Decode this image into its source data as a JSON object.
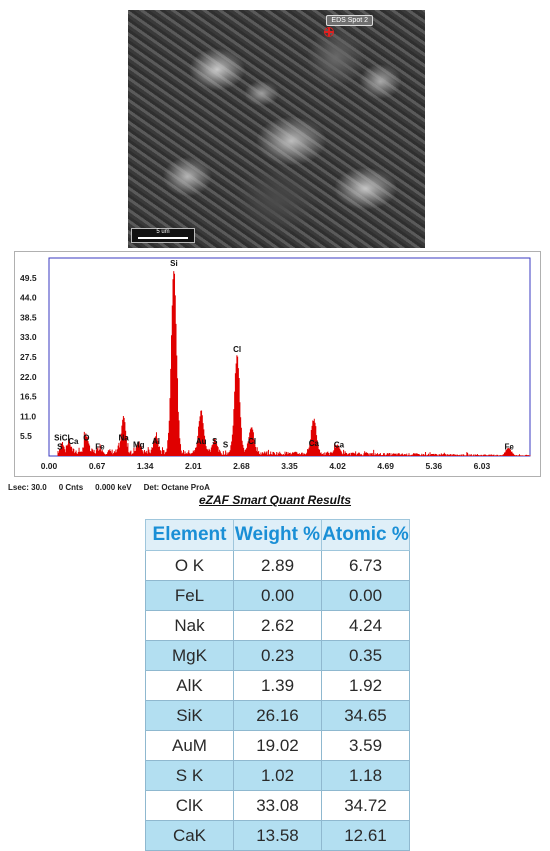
{
  "sem": {
    "tag": "EDS Spot 2",
    "scale_label": "5 um"
  },
  "chart_data": {
    "type": "line",
    "xlim": [
      0.0,
      6.7
    ],
    "ylim": [
      0,
      55
    ],
    "x_ticks": [
      "0.00",
      "0.67",
      "1.34",
      "2.01",
      "2.68",
      "3.35",
      "4.02",
      "4.69",
      "5.36",
      "6.03"
    ],
    "y_ticks": [
      "5.5",
      "11.0",
      "16.5",
      "22.0",
      "27.5",
      "33.0",
      "38.5",
      "44.0",
      "49.5"
    ],
    "line_color": "#e00000",
    "peaks": [
      {
        "x": 0.18,
        "y": 2.5,
        "w": 0.03
      },
      {
        "x": 0.28,
        "y": 3.0,
        "w": 0.03
      },
      {
        "x": 0.52,
        "y": 5.0,
        "w": 0.035
      },
      {
        "x": 0.71,
        "y": 1.5,
        "w": 0.03
      },
      {
        "x": 1.04,
        "y": 9.5,
        "w": 0.04
      },
      {
        "x": 1.25,
        "y": 3.0,
        "w": 0.04
      },
      {
        "x": 1.49,
        "y": 5.0,
        "w": 0.04
      },
      {
        "x": 1.74,
        "y": 51.0,
        "w": 0.05
      },
      {
        "x": 2.12,
        "y": 11.5,
        "w": 0.05
      },
      {
        "x": 2.31,
        "y": 4.0,
        "w": 0.04
      },
      {
        "x": 2.62,
        "y": 27.0,
        "w": 0.05
      },
      {
        "x": 2.82,
        "y": 7.5,
        "w": 0.05
      },
      {
        "x": 3.69,
        "y": 9.5,
        "w": 0.05
      },
      {
        "x": 4.01,
        "y": 2.5,
        "w": 0.05
      },
      {
        "x": 6.4,
        "y": 2.0,
        "w": 0.05
      }
    ],
    "background_level": 2.0,
    "labels": [
      {
        "text": "SiCl",
        "x": 0.18,
        "y": 3.5
      },
      {
        "text": "S",
        "x": 0.15,
        "y": 1.0
      },
      {
        "text": "Ca",
        "x": 0.34,
        "y": 2.5
      },
      {
        "text": "O",
        "x": 0.52,
        "y": 3.5
      },
      {
        "text": "Fe",
        "x": 0.71,
        "y": 1.0
      },
      {
        "text": "Na",
        "x": 1.04,
        "y": 3.5
      },
      {
        "text": "Mg",
        "x": 1.25,
        "y": 1.5
      },
      {
        "text": "Al",
        "x": 1.49,
        "y": 2.5
      },
      {
        "text": "Si",
        "x": 1.74,
        "y": 52.0
      },
      {
        "text": "Au",
        "x": 2.12,
        "y": 2.5
      },
      {
        "text": "S",
        "x": 2.31,
        "y": 2.5
      },
      {
        "text": "S",
        "x": 2.46,
        "y": 1.5
      },
      {
        "text": "Cl",
        "x": 2.62,
        "y": 28.0
      },
      {
        "text": "Cl",
        "x": 2.83,
        "y": 2.5
      },
      {
        "text": "Ca",
        "x": 3.69,
        "y": 2.0
      },
      {
        "text": "Ca",
        "x": 4.04,
        "y": 1.5
      },
      {
        "text": "Fe",
        "x": 6.41,
        "y": 1.0
      }
    ]
  },
  "spectrum_footer": {
    "lsec": "Lsec: 30.0",
    "cnts": "0 Cnts",
    "kev": "0.000 keV",
    "det": "Det: Octane ProA"
  },
  "quant": {
    "title": "eZAF Smart Quant Results",
    "headers": [
      "Element",
      "Weight %",
      "Atomic %"
    ],
    "rows": [
      [
        "O K",
        "2.89",
        "6.73"
      ],
      [
        "FeL",
        "0.00",
        "0.00"
      ],
      [
        "Nak",
        "2.62",
        "4.24"
      ],
      [
        "MgK",
        "0.23",
        "0.35"
      ],
      [
        "AlK",
        "1.39",
        "1.92"
      ],
      [
        "SiK",
        "26.16",
        "34.65"
      ],
      [
        "AuM",
        "19.02",
        "3.59"
      ],
      [
        "S K",
        "1.02",
        "1.18"
      ],
      [
        "ClK",
        "33.08",
        "34.72"
      ],
      [
        "CaK",
        "13.58",
        "12.61"
      ]
    ]
  }
}
